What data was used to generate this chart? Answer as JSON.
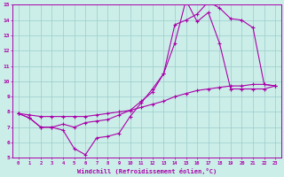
{
  "xlabel": "Windchill (Refroidissement éolien,°C)",
  "bg_color": "#cceee8",
  "grid_color": "#99cccc",
  "line_color": "#aa00aa",
  "xlim": [
    -0.5,
    23.5
  ],
  "ylim": [
    5,
    15
  ],
  "xticks": [
    0,
    1,
    2,
    3,
    4,
    5,
    6,
    7,
    8,
    9,
    10,
    11,
    12,
    13,
    14,
    15,
    16,
    17,
    18,
    19,
    20,
    21,
    22,
    23
  ],
  "yticks": [
    5,
    6,
    7,
    8,
    9,
    10,
    11,
    12,
    13,
    14,
    15
  ],
  "series1_x": [
    0,
    1,
    2,
    3,
    4,
    5,
    6,
    7,
    8,
    9,
    10,
    11,
    12,
    13,
    14,
    15,
    16,
    17,
    18,
    19,
    20,
    21,
    22,
    23
  ],
  "series1_y": [
    7.9,
    7.6,
    7.0,
    7.0,
    6.8,
    5.6,
    5.2,
    6.3,
    6.4,
    6.6,
    7.7,
    8.6,
    9.5,
    10.5,
    12.5,
    15.3,
    13.9,
    14.5,
    12.5,
    9.5,
    9.5,
    9.5,
    9.5,
    9.7
  ],
  "series2_x": [
    0,
    1,
    2,
    3,
    4,
    5,
    6,
    7,
    8,
    9,
    10,
    11,
    12,
    13,
    14,
    15,
    16,
    17,
    18,
    19,
    20,
    21,
    22,
    23
  ],
  "series2_y": [
    7.9,
    7.6,
    7.0,
    7.0,
    7.2,
    7.0,
    7.3,
    7.4,
    7.5,
    7.8,
    8.1,
    8.7,
    9.3,
    10.5,
    13.7,
    14.0,
    14.4,
    15.2,
    14.8,
    14.1,
    14.0,
    13.5,
    9.8,
    9.7
  ],
  "series3_x": [
    0,
    1,
    2,
    3,
    4,
    5,
    6,
    7,
    8,
    9,
    10,
    11,
    12,
    13,
    14,
    15,
    16,
    17,
    18,
    19,
    20,
    21,
    22,
    23
  ],
  "series3_y": [
    7.9,
    7.8,
    7.7,
    7.7,
    7.7,
    7.7,
    7.7,
    7.8,
    7.9,
    8.0,
    8.1,
    8.3,
    8.5,
    8.7,
    9.0,
    9.2,
    9.4,
    9.5,
    9.6,
    9.7,
    9.7,
    9.8,
    9.8,
    9.7
  ]
}
